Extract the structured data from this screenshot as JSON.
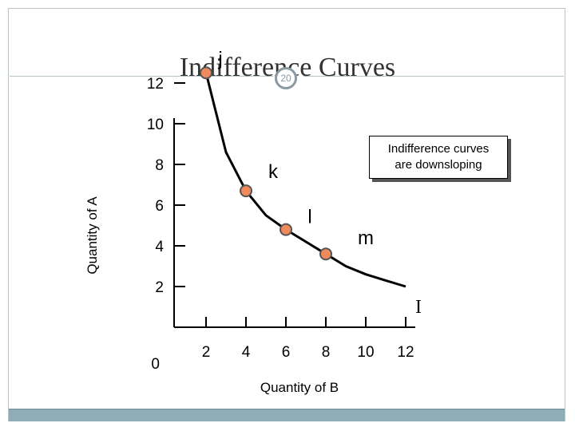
{
  "slide": {
    "title": "Indifference Curves",
    "page_number": "20"
  },
  "callout": {
    "line1": "Indifference curves",
    "line2": "are downsloping"
  },
  "colors": {
    "point_fill": "#f08a5d",
    "curve": "#000000",
    "footer": "#8eaeb6"
  },
  "chart_data": {
    "type": "line",
    "xlabel": "Quantity of B",
    "ylabel": "Quantity of A",
    "xlim": [
      0,
      13
    ],
    "ylim": [
      0,
      13
    ],
    "x_ticks": [
      2,
      4,
      6,
      8,
      10,
      12
    ],
    "y_ticks": [
      0,
      2,
      4,
      6,
      8,
      10,
      12
    ],
    "series": [
      {
        "name": "I",
        "x": [
          2,
          3,
          4,
          5,
          6,
          7,
          8,
          9,
          10,
          11,
          12
        ],
        "y": [
          12.5,
          8.6,
          6.7,
          5.5,
          4.8,
          4.2,
          3.6,
          3.0,
          2.6,
          2.3,
          2.0
        ]
      }
    ],
    "points": [
      {
        "label": "j",
        "x": 2,
        "y": 12.5
      },
      {
        "label": "k",
        "x": 4,
        "y": 6.7
      },
      {
        "label": "l",
        "x": 6,
        "y": 4.8
      },
      {
        "label": "m",
        "x": 8,
        "y": 3.6
      }
    ],
    "curve_label": "I"
  }
}
